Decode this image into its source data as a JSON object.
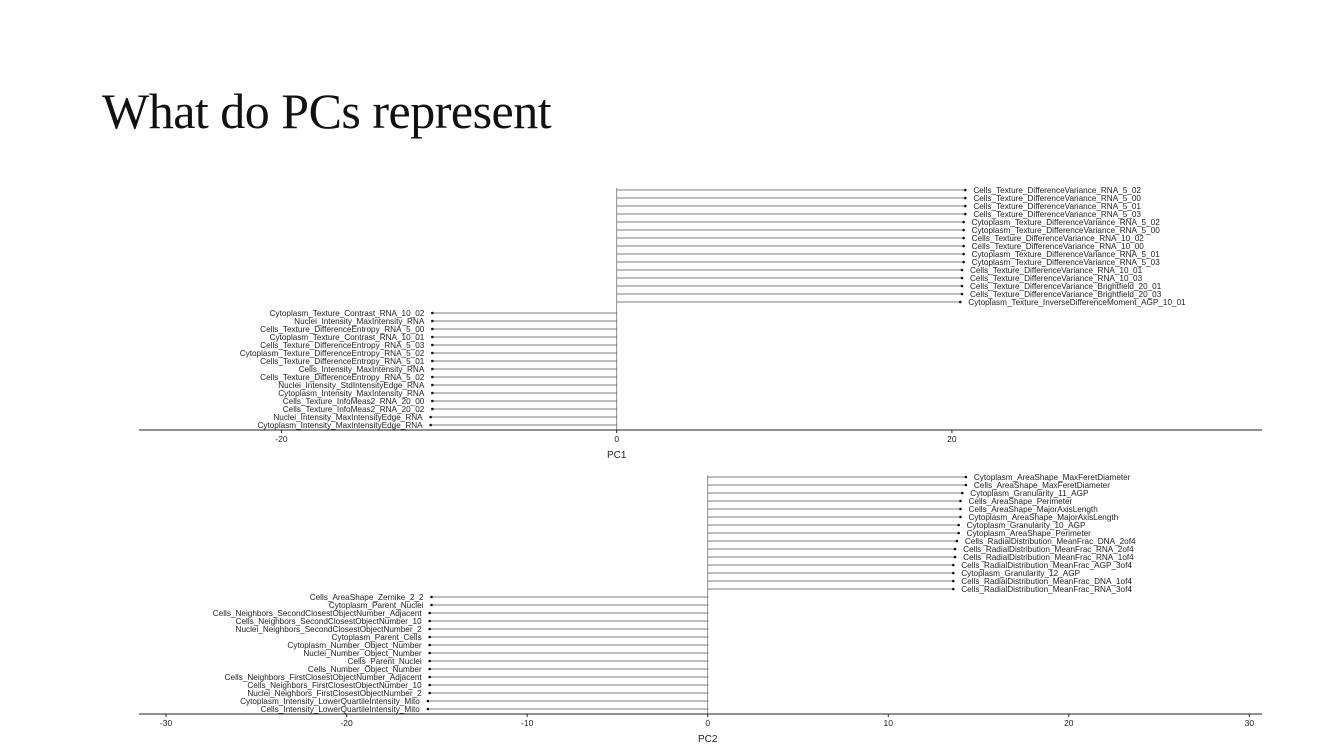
{
  "slide": {
    "title": "What do PCs represent"
  },
  "chart_data": [
    {
      "type": "lollipop",
      "xlabel": "PC1",
      "ylabel": "",
      "xlim": [
        -28.5,
        38.5
      ],
      "x_ticks": [
        -20,
        0,
        20
      ],
      "grid": false,
      "series": [
        {
          "label": "Cells_Texture_DifferenceVariance_RNA_5_02",
          "value": 20.8
        },
        {
          "label": "Cells_Texture_DifferenceVariance_RNA_5_00",
          "value": 20.8
        },
        {
          "label": "Cells_Texture_DifferenceVariance_RNA_5_01",
          "value": 20.8
        },
        {
          "label": "Cells_Texture_DifferenceVariance_RNA_5_03",
          "value": 20.8
        },
        {
          "label": "Cytoplasm_Texture_DifferenceVariance_RNA_5_02",
          "value": 20.7
        },
        {
          "label": "Cytoplasm_Texture_DifferenceVariance_RNA_5_00",
          "value": 20.7
        },
        {
          "label": "Cells_Texture_DifferenceVariance_RNA_10_02",
          "value": 20.7
        },
        {
          "label": "Cells_Texture_DifferenceVariance_RNA_10_00",
          "value": 20.7
        },
        {
          "label": "Cytoplasm_Texture_DifferenceVariance_RNA_5_01",
          "value": 20.7
        },
        {
          "label": "Cytoplasm_Texture_DifferenceVariance_RNA_5_03",
          "value": 20.7
        },
        {
          "label": "Cells_Texture_DifferenceVariance_RNA_10_01",
          "value": 20.6
        },
        {
          "label": "Cells_Texture_DifferenceVariance_RNA_10_03",
          "value": 20.6
        },
        {
          "label": "Cells_Texture_DifferenceVariance_Brightfield_20_01",
          "value": 20.6
        },
        {
          "label": "Cells_Texture_DifferenceVariance_Brightfield_20_03",
          "value": 20.6
        },
        {
          "label": "Cytoplasm_Texture_InverseDifferenceMoment_AGP_10_01",
          "value": 20.5
        },
        {
          "label": "Cytoplasm_Texture_Contrast_RNA_10_02",
          "value": -11.0
        },
        {
          "label": "Nuclei_Intensity_MaxIntensity_RNA",
          "value": -11.0
        },
        {
          "label": "Cells_Texture_DifferenceEntropy_RNA_5_00",
          "value": -11.0
        },
        {
          "label": "Cytoplasm_Texture_Contrast_RNA_10_01",
          "value": -11.0
        },
        {
          "label": "Cells_Texture_DifferenceEntropy_RNA_5_03",
          "value": -11.0
        },
        {
          "label": "Cytoplasm_Texture_DifferenceEntropy_RNA_5_02",
          "value": -11.0
        },
        {
          "label": "Cells_Texture_DifferenceEntropy_RNA_5_01",
          "value": -11.0
        },
        {
          "label": "Cells_Intensity_MaxIntensity_RNA",
          "value": -11.0
        },
        {
          "label": "Cells_Texture_DifferenceEntropy_RNA_5_02",
          "value": -11.0
        },
        {
          "label": "Nuclei_Intensity_StdIntensityEdge_RNA",
          "value": -11.0
        },
        {
          "label": "Cytoplasm_Intensity_MaxIntensity_RNA",
          "value": -11.0
        },
        {
          "label": "Cells_Texture_InfoMeas2_RNA_20_00",
          "value": -11.0
        },
        {
          "label": "Cells_Texture_InfoMeas2_RNA_20_02",
          "value": -11.0
        },
        {
          "label": "Nuclei_Intensity_MaxIntensityEdge_RNA",
          "value": -11.1
        },
        {
          "label": "Cytoplasm_Intensity_MaxIntensityEdge_RNA",
          "value": -11.1
        }
      ]
    },
    {
      "type": "lollipop",
      "xlabel": "PC2",
      "ylabel": "",
      "xlim": [
        -31.5,
        30.7
      ],
      "x_ticks": [
        -30,
        -20,
        -10,
        0,
        10,
        20,
        30
      ],
      "grid": false,
      "series": [
        {
          "label": "Cytoplasm_AreaShape_MaxFeretDiameter",
          "value": 14.3
        },
        {
          "label": "Cells_AreaShape_MaxFeretDiameter",
          "value": 14.3
        },
        {
          "label": "Cytoplasm_Granularity_11_AGP",
          "value": 14.1
        },
        {
          "label": "Cells_AreaShape_Perimeter",
          "value": 14.0
        },
        {
          "label": "Cells_AreaShape_MajorAxisLength",
          "value": 14.0
        },
        {
          "label": "Cytoplasm_AreaShape_MajorAxisLength",
          "value": 14.0
        },
        {
          "label": "Cytoplasm_Granularity_10_AGP",
          "value": 13.9
        },
        {
          "label": "Cytoplasm_AreaShape_Perimeter",
          "value": 13.9
        },
        {
          "label": "Cells_RadialDistribution_MeanFrac_DNA_2of4",
          "value": 13.8
        },
        {
          "label": "Cells_RadialDistribution_MeanFrac_RNA_2of4",
          "value": 13.7
        },
        {
          "label": "Cells_RadialDistribution_MeanFrac_RNA_1of4",
          "value": 13.7
        },
        {
          "label": "Cells_RadialDistribution_MeanFrac_AGP_3of4",
          "value": 13.6
        },
        {
          "label": "Cytoplasm_Granularity_12_AGP",
          "value": 13.6
        },
        {
          "label": "Cells_RadialDistribution_MeanFrac_DNA_1of4",
          "value": 13.6
        },
        {
          "label": "Cells_RadialDistribution_MeanFrac_RNA_3of4",
          "value": 13.6
        },
        {
          "label": "Cells_AreaShape_Zernike_2_2",
          "value": -15.3
        },
        {
          "label": "Cytoplasm_Parent_Nuclei",
          "value": -15.3
        },
        {
          "label": "Cells_Neighbors_SecondClosestObjectNumber_Adjacent",
          "value": -15.4
        },
        {
          "label": "Cells_Neighbors_SecondClosestObjectNumber_10",
          "value": -15.4
        },
        {
          "label": "Nuclei_Neighbors_SecondClosestObjectNumber_2",
          "value": -15.4
        },
        {
          "label": "Cytoplasm_Parent_Cells",
          "value": -15.4
        },
        {
          "label": "Cytoplasm_Number_Object_Number",
          "value": -15.4
        },
        {
          "label": "Nuclei_Number_Object_Number",
          "value": -15.4
        },
        {
          "label": "Cells_Parent_Nuclei",
          "value": -15.4
        },
        {
          "label": "Cells_Number_Object_Number",
          "value": -15.4
        },
        {
          "label": "Cells_Neighbors_FirstClosestObjectNumber_Adjacent",
          "value": -15.4
        },
        {
          "label": "Cells_Neighbors_FirstClosestObjectNumber_10",
          "value": -15.4
        },
        {
          "label": "Nuclei_Neighbors_FirstClosestObjectNumber_2",
          "value": -15.4
        },
        {
          "label": "Cytoplasm_Intensity_LowerQuartileIntensity_Mito",
          "value": -15.5
        },
        {
          "label": "Cells_Intensity_LowerQuartileIntensity_Mito",
          "value": -15.5
        }
      ]
    }
  ]
}
